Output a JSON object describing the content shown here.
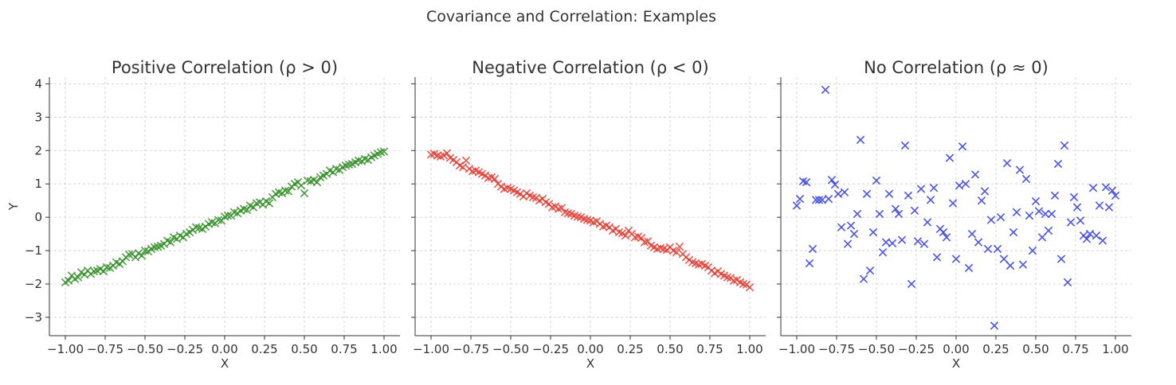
{
  "figure": {
    "suptitle": "Covariance and Correlation: Examples"
  },
  "chart_data": [
    {
      "type": "scatter",
      "title": "Positive Correlation (ρ > 0)",
      "xlabel": "X",
      "ylabel": "Y",
      "xlim": [
        -1.1,
        1.1
      ],
      "ylim": [
        -3.55,
        4.2
      ],
      "xticks": [
        -1.0,
        -0.75,
        -0.5,
        -0.25,
        0.0,
        0.25,
        0.5,
        0.75,
        1.0
      ],
      "xtick_labels": [
        "−1.00",
        "−0.75",
        "−0.50",
        "−0.25",
        "0.00",
        "0.25",
        "0.50",
        "0.75",
        "1.00"
      ],
      "yticks": [
        -3,
        -2,
        -1,
        0,
        1,
        2,
        3,
        4
      ],
      "ytick_labels": [
        "−3",
        "−2",
        "−1",
        "0",
        "1",
        "2",
        "3",
        "4"
      ],
      "grid": true,
      "marker": "x",
      "color": "#2e8b22",
      "x": [
        -1.0,
        -0.98,
        -0.96,
        -0.94,
        -0.92,
        -0.9,
        -0.88,
        -0.86,
        -0.84,
        -0.82,
        -0.8,
        -0.78,
        -0.76,
        -0.74,
        -0.72,
        -0.7,
        -0.68,
        -0.66,
        -0.64,
        -0.62,
        -0.6,
        -0.58,
        -0.56,
        -0.54,
        -0.52,
        -0.5,
        -0.48,
        -0.46,
        -0.44,
        -0.42,
        -0.4,
        -0.38,
        -0.36,
        -0.34,
        -0.32,
        -0.3,
        -0.28,
        -0.26,
        -0.24,
        -0.22,
        -0.2,
        -0.18,
        -0.16,
        -0.14,
        -0.12,
        -0.1,
        -0.08,
        -0.06,
        -0.04,
        -0.02,
        0.0,
        0.02,
        0.04,
        0.06,
        0.08,
        0.1,
        0.12,
        0.14,
        0.16,
        0.18,
        0.2,
        0.22,
        0.24,
        0.26,
        0.28,
        0.3,
        0.32,
        0.34,
        0.36,
        0.38,
        0.4,
        0.42,
        0.44,
        0.46,
        0.48,
        0.5,
        0.52,
        0.54,
        0.56,
        0.58,
        0.6,
        0.62,
        0.64,
        0.66,
        0.68,
        0.7,
        0.72,
        0.74,
        0.76,
        0.78,
        0.8,
        0.82,
        0.84,
        0.86,
        0.88,
        0.9,
        0.92,
        0.94,
        0.96,
        0.98,
        1.0
      ],
      "y": [
        -1.95,
        -1.9,
        -1.75,
        -1.85,
        -1.8,
        -1.65,
        -1.72,
        -1.6,
        -1.7,
        -1.62,
        -1.6,
        -1.55,
        -1.62,
        -1.5,
        -1.52,
        -1.45,
        -1.35,
        -1.4,
        -1.32,
        -1.2,
        -1.12,
        -1.1,
        -1.2,
        -1.08,
        -1.15,
        -1.0,
        -1.02,
        -0.95,
        -0.9,
        -0.88,
        -0.85,
        -0.8,
        -0.7,
        -0.75,
        -0.6,
        -0.65,
        -0.55,
        -0.6,
        -0.5,
        -0.45,
        -0.38,
        -0.3,
        -0.32,
        -0.35,
        -0.28,
        -0.2,
        -0.15,
        -0.18,
        -0.08,
        -0.1,
        0.02,
        0.05,
        0.05,
        0.15,
        0.12,
        0.2,
        0.25,
        0.22,
        0.35,
        0.3,
        0.42,
        0.45,
        0.38,
        0.48,
        0.42,
        0.6,
        0.7,
        0.75,
        0.72,
        0.8,
        0.78,
        0.92,
        1.0,
        1.05,
        0.95,
        0.72,
        1.1,
        1.08,
        1.12,
        1.05,
        1.2,
        1.25,
        1.3,
        1.4,
        1.35,
        1.45,
        1.42,
        1.5,
        1.55,
        1.58,
        1.6,
        1.65,
        1.7,
        1.68,
        1.75,
        1.72,
        1.8,
        1.85,
        1.9,
        1.95,
        1.97
      ]
    },
    {
      "type": "scatter",
      "title": "Negative Correlation (ρ < 0)",
      "xlabel": "X",
      "ylabel": "",
      "xlim": [
        -1.1,
        1.1
      ],
      "ylim": [
        -3.55,
        4.2
      ],
      "xticks": [
        -1.0,
        -0.75,
        -0.5,
        -0.25,
        0.0,
        0.25,
        0.5,
        0.75,
        1.0
      ],
      "xtick_labels": [
        "−1.00",
        "−0.75",
        "−0.50",
        "−0.25",
        "0.00",
        "0.25",
        "0.50",
        "0.75",
        "1.00"
      ],
      "yticks": [
        -3,
        -2,
        -1,
        0,
        1,
        2,
        3,
        4
      ],
      "ytick_labels": [],
      "grid": true,
      "marker": "x",
      "color": "#e03a2f",
      "x": [
        -1.0,
        -0.98,
        -0.96,
        -0.94,
        -0.92,
        -0.9,
        -0.88,
        -0.86,
        -0.84,
        -0.82,
        -0.8,
        -0.78,
        -0.76,
        -0.74,
        -0.72,
        -0.7,
        -0.68,
        -0.66,
        -0.64,
        -0.62,
        -0.6,
        -0.58,
        -0.56,
        -0.54,
        -0.52,
        -0.5,
        -0.48,
        -0.46,
        -0.44,
        -0.42,
        -0.4,
        -0.38,
        -0.36,
        -0.34,
        -0.32,
        -0.3,
        -0.28,
        -0.26,
        -0.24,
        -0.22,
        -0.2,
        -0.18,
        -0.16,
        -0.14,
        -0.12,
        -0.1,
        -0.08,
        -0.06,
        -0.04,
        -0.02,
        0.0,
        0.02,
        0.04,
        0.06,
        0.08,
        0.1,
        0.12,
        0.14,
        0.16,
        0.18,
        0.2,
        0.22,
        0.24,
        0.26,
        0.28,
        0.3,
        0.32,
        0.34,
        0.36,
        0.38,
        0.4,
        0.42,
        0.44,
        0.46,
        0.48,
        0.5,
        0.52,
        0.54,
        0.56,
        0.58,
        0.6,
        0.62,
        0.64,
        0.66,
        0.68,
        0.7,
        0.72,
        0.74,
        0.76,
        0.78,
        0.8,
        0.82,
        0.84,
        0.86,
        0.88,
        0.9,
        0.92,
        0.94,
        0.96,
        0.98,
        1.0
      ],
      "y": [
        1.88,
        1.9,
        1.85,
        1.82,
        1.85,
        1.92,
        1.78,
        1.72,
        1.65,
        1.55,
        1.5,
        1.7,
        1.45,
        1.38,
        1.4,
        1.35,
        1.3,
        1.25,
        1.18,
        1.2,
        1.15,
        1.0,
        0.92,
        0.85,
        0.88,
        0.85,
        0.8,
        0.75,
        0.7,
        0.62,
        0.72,
        0.65,
        0.6,
        0.58,
        0.5,
        0.55,
        0.45,
        0.4,
        0.3,
        0.32,
        0.25,
        0.28,
        0.15,
        0.12,
        0.1,
        0.05,
        0.02,
        0.0,
        -0.05,
        -0.08,
        -0.1,
        -0.15,
        -0.12,
        -0.2,
        -0.28,
        -0.25,
        -0.3,
        -0.4,
        -0.35,
        -0.45,
        -0.48,
        -0.55,
        -0.4,
        -0.5,
        -0.6,
        -0.58,
        -0.62,
        -0.75,
        -0.72,
        -0.85,
        -0.9,
        -0.95,
        -0.92,
        -0.95,
        -0.98,
        -0.9,
        -1.0,
        -1.05,
        -0.88,
        -1.1,
        -1.2,
        -1.28,
        -1.35,
        -1.38,
        -1.42,
        -1.4,
        -1.45,
        -1.5,
        -1.6,
        -1.68,
        -1.62,
        -1.7,
        -1.75,
        -1.8,
        -1.82,
        -1.9,
        -1.88,
        -1.95,
        -2.0,
        -2.02,
        -2.1
      ]
    },
    {
      "type": "scatter",
      "title": "No Correlation (ρ ≈ 0)",
      "xlabel": "X",
      "ylabel": "",
      "xlim": [
        -1.1,
        1.1
      ],
      "ylim": [
        -3.55,
        4.2
      ],
      "xticks": [
        -1.0,
        -0.75,
        -0.5,
        -0.25,
        0.0,
        0.25,
        0.5,
        0.75,
        1.0
      ],
      "xtick_labels": [
        "−1.00",
        "−0.75",
        "−0.50",
        "−0.25",
        "0.00",
        "0.25",
        "0.50",
        "0.75",
        "1.00"
      ],
      "yticks": [
        -3,
        -2,
        -1,
        0,
        1,
        2,
        3,
        4
      ],
      "ytick_labels": [],
      "grid": true,
      "marker": "x",
      "color": "#2b35e8",
      "x": [
        -1.0,
        -0.98,
        -0.96,
        -0.94,
        -0.92,
        -0.9,
        -0.88,
        -0.86,
        -0.84,
        -0.82,
        -0.8,
        -0.78,
        -0.76,
        -0.74,
        -0.72,
        -0.7,
        -0.68,
        -0.66,
        -0.64,
        -0.62,
        -0.6,
        -0.58,
        -0.56,
        -0.54,
        -0.52,
        -0.5,
        -0.48,
        -0.46,
        -0.44,
        -0.42,
        -0.4,
        -0.38,
        -0.36,
        -0.34,
        -0.32,
        -0.3,
        -0.28,
        -0.26,
        -0.24,
        -0.22,
        -0.2,
        -0.18,
        -0.16,
        -0.14,
        -0.12,
        -0.1,
        -0.08,
        -0.06,
        -0.04,
        -0.02,
        0.0,
        0.02,
        0.04,
        0.06,
        0.08,
        0.1,
        0.12,
        0.14,
        0.16,
        0.18,
        0.2,
        0.22,
        0.24,
        0.26,
        0.28,
        0.3,
        0.32,
        0.34,
        0.36,
        0.38,
        0.4,
        0.42,
        0.44,
        0.46,
        0.48,
        0.5,
        0.52,
        0.54,
        0.56,
        0.58,
        0.6,
        0.62,
        0.64,
        0.66,
        0.68,
        0.7,
        0.72,
        0.74,
        0.76,
        0.78,
        0.8,
        0.82,
        0.84,
        0.86,
        0.88,
        0.9,
        0.92,
        0.94,
        0.96,
        0.98,
        1.0
      ],
      "y": [
        0.35,
        0.55,
        1.08,
        1.05,
        -1.38,
        -0.95,
        0.52,
        0.52,
        0.52,
        3.82,
        0.55,
        1.12,
        0.98,
        0.7,
        -0.3,
        0.75,
        -0.8,
        -0.25,
        -0.5,
        0.1,
        2.32,
        -1.85,
        0.7,
        -1.6,
        -0.45,
        1.1,
        0.1,
        -1.05,
        -0.75,
        0.7,
        -0.78,
        0.25,
        0.1,
        -0.68,
        2.15,
        0.65,
        -2.0,
        0.2,
        -0.72,
        0.85,
        -0.8,
        -0.15,
        0.52,
        0.88,
        -1.2,
        -0.35,
        -0.45,
        -0.6,
        1.78,
        0.42,
        -1.25,
        0.95,
        2.12,
        1.0,
        -1.52,
        -0.5,
        1.28,
        -0.75,
        0.5,
        0.78,
        -0.95,
        -0.08,
        -3.25,
        -0.95,
        0.0,
        -1.25,
        1.62,
        -1.45,
        -0.45,
        0.15,
        1.42,
        -1.42,
        1.15,
        0.05,
        -1.0,
        0.48,
        0.18,
        -0.6,
        0.1,
        -0.4,
        0.1,
        0.65,
        1.6,
        -1.25,
        2.15,
        -1.95,
        -0.15,
        0.6,
        0.3,
        -0.1,
        -0.55,
        -0.65,
        -0.5,
        0.88,
        -0.55,
        0.35,
        -0.7,
        0.9,
        0.3,
        0.8,
        0.65
      ]
    }
  ]
}
